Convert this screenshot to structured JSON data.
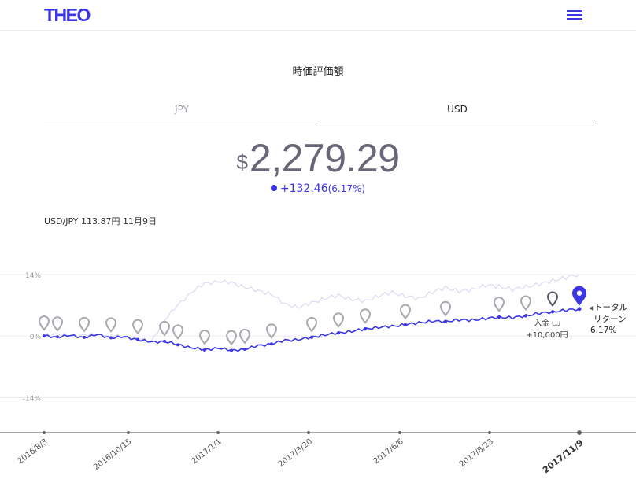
{
  "header": {
    "logo": "THEO",
    "menu_icon": "hamburger-menu-icon"
  },
  "section_title": "時価評価額",
  "tabs": [
    {
      "label": "JPY",
      "active": false
    },
    {
      "label": "USD",
      "active": true
    }
  ],
  "valuation": {
    "currency": "$",
    "amount": "2,279.29",
    "change": "+132.46",
    "change_pct": "(6.17%)"
  },
  "fx_note": "USD/JPY 113.87円 11月9日",
  "deposit": {
    "label": "入金",
    "amount": "+10,000円"
  },
  "total_return": {
    "line1": "トータル",
    "line2": "リターン",
    "value": "6.17%"
  },
  "colors": {
    "accent": "#3b35e4",
    "benchmark": "#d8dbf2",
    "marker": "#a8aab0",
    "axis": "#8a8a8f"
  },
  "chart_data": {
    "type": "line",
    "y_ticks": [
      "14%",
      "0%",
      "-14%"
    ],
    "ylim": [
      -22,
      14
    ],
    "x_ticks": [
      "2016/8/3",
      "2016/10/15",
      "2017/1/1",
      "2017/3/20",
      "2017/6/6",
      "2017/8/23",
      "2017/11/9"
    ],
    "current_x_tick": "2017/11/9",
    "series": [
      {
        "values": [
          0,
          -0.2,
          0.1,
          -0.3,
          0.3,
          -0.4,
          -0.2,
          -0.8,
          -1.4,
          -1.2,
          -2.0,
          -2.6,
          -3.2,
          -2.7,
          -3.3,
          -3.0,
          -2.2,
          -1.8,
          -1.0,
          -0.8,
          -0.3,
          0.3,
          0.7,
          1.1,
          1.6,
          2.0,
          2.2,
          2.6,
          3.0,
          3.4,
          3.3,
          3.7,
          3.6,
          4.0,
          4.3,
          4.2,
          4.6,
          5.2,
          5.5,
          5.9,
          6.17
        ]
      },
      {
        "values": [
          0,
          0.6,
          -0.2,
          0.4,
          0.1,
          0.5,
          -0.6,
          -0.4,
          -1.4,
          3.8,
          7.0,
          10.0,
          11.9,
          12.5,
          12.1,
          11.2,
          10.2,
          9.6,
          7.2,
          6.6,
          7.5,
          8.6,
          9.2,
          8.4,
          7.9,
          9.2,
          9.9,
          9.1,
          8.5,
          10.0,
          11.0,
          10.2,
          10.5,
          11.6,
          11.3,
          10.6,
          11.2,
          11.8,
          12.6,
          13.3,
          14.1
        ]
      }
    ],
    "markers_x_index": [
      0,
      1,
      3,
      5,
      7,
      9,
      10,
      12,
      14,
      15,
      17,
      20,
      22,
      24,
      27,
      30,
      34,
      36
    ],
    "deposit_marker_index": 38,
    "current_marker_index": 40
  }
}
